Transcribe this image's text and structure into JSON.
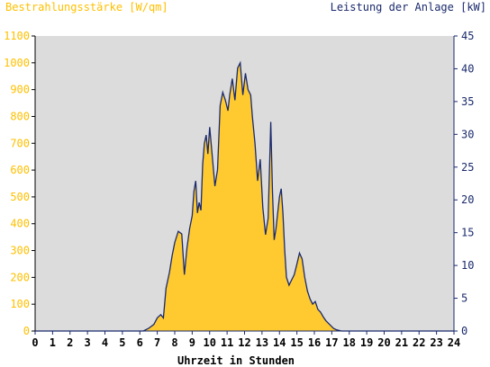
{
  "chart_data": {
    "type": "area",
    "ylabel_left": "Bestrahlungsstärke [W/qm]",
    "ylabel_right": "Leistung der Anlage [kW]",
    "xlabel": "Uhrzeit in Stunden",
    "xlim": [
      0,
      24
    ],
    "ylim_left": [
      0,
      1100
    ],
    "ylim_right": [
      0,
      45
    ],
    "x_ticks": [
      0,
      1,
      2,
      3,
      4,
      5,
      6,
      7,
      8,
      9,
      10,
      11,
      12,
      13,
      14,
      15,
      16,
      17,
      18,
      19,
      20,
      21,
      22,
      23,
      24
    ],
    "y_ticks_left": [
      0,
      100,
      200,
      300,
      400,
      500,
      600,
      700,
      800,
      900,
      1000,
      1100
    ],
    "y_ticks_right": [
      0,
      5,
      10,
      15,
      20,
      25,
      30,
      35,
      40,
      45
    ],
    "grid": false,
    "series": [
      {
        "axis": "left",
        "style": "area",
        "x": [
          0,
          6.2,
          6.5,
          6.8,
          7.0,
          7.2,
          7.35,
          7.5,
          7.7,
          7.85,
          8.0,
          8.2,
          8.4,
          8.55,
          8.7,
          8.85,
          9.0,
          9.1,
          9.2,
          9.3,
          9.4,
          9.5,
          9.6,
          9.7,
          9.8,
          9.9,
          10.0,
          10.15,
          10.3,
          10.45,
          10.6,
          10.75,
          10.9,
          11.05,
          11.15,
          11.3,
          11.45,
          11.6,
          11.75,
          11.9,
          12.05,
          12.2,
          12.35,
          12.45,
          12.6,
          12.75,
          12.9,
          13.05,
          13.2,
          13.35,
          13.5,
          13.6,
          13.7,
          13.8,
          13.9,
          14.0,
          14.1,
          14.2,
          14.3,
          14.4,
          14.55,
          14.7,
          14.85,
          15.0,
          15.15,
          15.3,
          15.45,
          15.6,
          15.75,
          15.9,
          16.05,
          16.2,
          16.35,
          16.5,
          16.65,
          16.8,
          16.95,
          17.1,
          17.25,
          17.4,
          17.55,
          17.7,
          17.85,
          18.0,
          18.2,
          18.4,
          18.6,
          18.8,
          18.9,
          24
        ],
        "values": [
          0,
          0,
          10,
          25,
          50,
          60,
          50,
          160,
          220,
          280,
          330,
          370,
          360,
          210,
          310,
          380,
          430,
          520,
          560,
          440,
          480,
          450,
          620,
          700,
          730,
          660,
          760,
          650,
          540,
          600,
          840,
          890,
          860,
          820,
          880,
          940,
          860,
          980,
          1000,
          880,
          960,
          900,
          880,
          800,
          700,
          560,
          640,
          460,
          360,
          420,
          780,
          520,
          340,
          380,
          440,
          500,
          530,
          440,
          300,
          200,
          170,
          190,
          210,
          250,
          290,
          270,
          200,
          150,
          120,
          100,
          110,
          80,
          70,
          55,
          40,
          30,
          20,
          10,
          5,
          2,
          0,
          0,
          0,
          0,
          0,
          0,
          0,
          0,
          0,
          0
        ]
      },
      {
        "axis": "right",
        "style": "line",
        "x": [
          0,
          6.2,
          6.5,
          6.8,
          7.0,
          7.2,
          7.35,
          7.5,
          7.7,
          7.85,
          8.0,
          8.2,
          8.4,
          8.55,
          8.7,
          8.85,
          9.0,
          9.1,
          9.2,
          9.3,
          9.4,
          9.5,
          9.6,
          9.7,
          9.8,
          9.9,
          10.0,
          10.15,
          10.3,
          10.45,
          10.6,
          10.75,
          10.9,
          11.05,
          11.15,
          11.3,
          11.45,
          11.6,
          11.75,
          11.9,
          12.05,
          12.2,
          12.35,
          12.45,
          12.6,
          12.75,
          12.9,
          13.05,
          13.2,
          13.35,
          13.5,
          13.6,
          13.7,
          13.8,
          13.9,
          14.0,
          14.1,
          14.2,
          14.3,
          14.4,
          14.55,
          14.7,
          14.85,
          15.0,
          15.15,
          15.3,
          15.45,
          15.6,
          15.75,
          15.9,
          16.05,
          16.2,
          16.35,
          16.5,
          16.65,
          16.8,
          16.95,
          17.1,
          17.25,
          17.4,
          17.55,
          17.7,
          17.85,
          18.0,
          18.2,
          18.4,
          18.6,
          18.8,
          18.9,
          24
        ],
        "values": [
          0,
          0,
          0.4,
          1.0,
          2.0,
          2.5,
          2.0,
          6.5,
          9.0,
          11.5,
          13.5,
          15.2,
          14.8,
          8.6,
          12.7,
          15.6,
          17.6,
          21.3,
          22.9,
          18.0,
          19.6,
          18.4,
          25.4,
          28.6,
          29.9,
          27.0,
          31.1,
          26.6,
          22.1,
          24.6,
          34.4,
          36.4,
          35.2,
          33.6,
          36.0,
          38.5,
          35.2,
          40.1,
          40.9,
          36.0,
          39.3,
          36.8,
          36.0,
          32.7,
          28.6,
          22.9,
          26.2,
          18.8,
          14.7,
          17.2,
          31.9,
          21.3,
          13.9,
          15.6,
          18.0,
          20.5,
          21.7,
          18.0,
          12.3,
          8.2,
          7.0,
          7.8,
          8.6,
          10.2,
          11.9,
          11.0,
          8.2,
          6.1,
          4.9,
          4.1,
          4.5,
          3.3,
          2.9,
          2.2,
          1.6,
          1.2,
          0.8,
          0.4,
          0.2,
          0.1,
          0,
          0,
          0,
          0,
          0,
          0,
          0,
          0,
          0,
          0
        ]
      }
    ],
    "colors": {
      "area_fill": "#FFC930",
      "line": "#1A2A6C",
      "plot_bg": "#DCDCDC",
      "left_axis": "#FFC000",
      "right_axis": "#1A2A6C"
    }
  }
}
